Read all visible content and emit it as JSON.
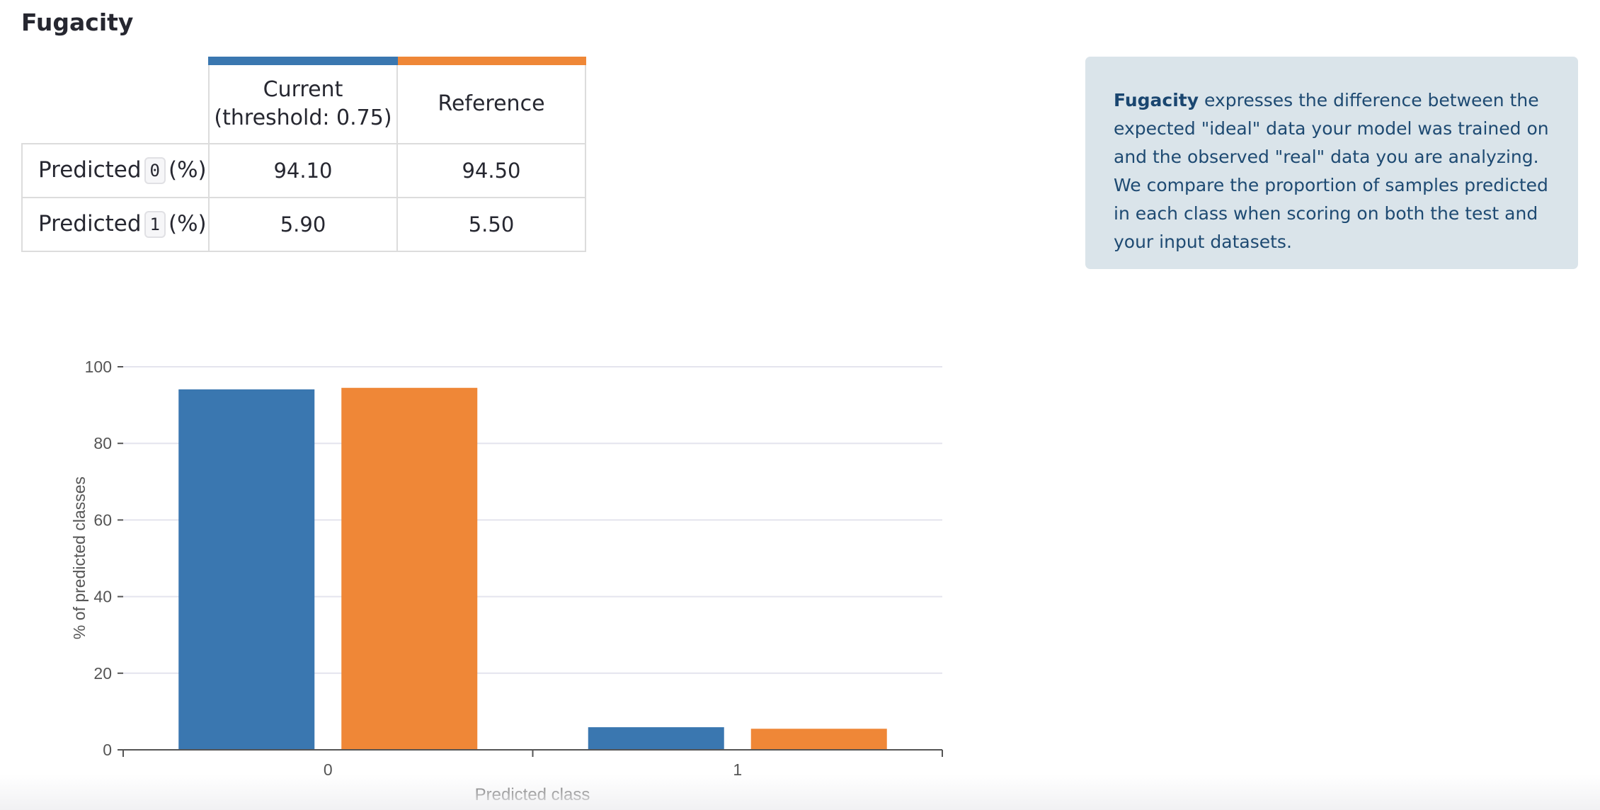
{
  "page": {
    "title": "Fugacity"
  },
  "table": {
    "headers": {
      "current": "Current",
      "current_sub": "(threshold: 0.75)",
      "reference": "Reference"
    },
    "rows": [
      {
        "label_prefix": "Predicted",
        "class_code": "0",
        "label_suffix": "(%)",
        "current": "94.10",
        "reference": "94.50"
      },
      {
        "label_prefix": "Predicted",
        "class_code": "1",
        "label_suffix": "(%)",
        "current": "5.90",
        "reference": "5.50"
      }
    ]
  },
  "info": {
    "term": "Fugacity",
    "text": " expresses the difference between the expected \"ideal\" data your model was trained on and the observed \"real\" data you are analyzing. We compare the proportion of samples predicted in each class when scoring on both the test and your input datasets."
  },
  "colors": {
    "current": "#3a77b0",
    "reference": "#ef8737",
    "grid": "#e4e4ee",
    "axis": "#555555"
  },
  "chart_data": {
    "type": "bar",
    "categories": [
      "0",
      "1"
    ],
    "series": [
      {
        "values": [
          94.1,
          5.9
        ],
        "color": "#3a77b0"
      },
      {
        "values": [
          94.5,
          5.5
        ],
        "color": "#ef8737"
      }
    ],
    "xlabel": "Predicted class",
    "ylabel": "% of predicted classes",
    "ylim": [
      0,
      100
    ],
    "yticks": [
      0,
      20,
      40,
      60,
      80,
      100
    ],
    "grid": true,
    "legend": "none"
  }
}
